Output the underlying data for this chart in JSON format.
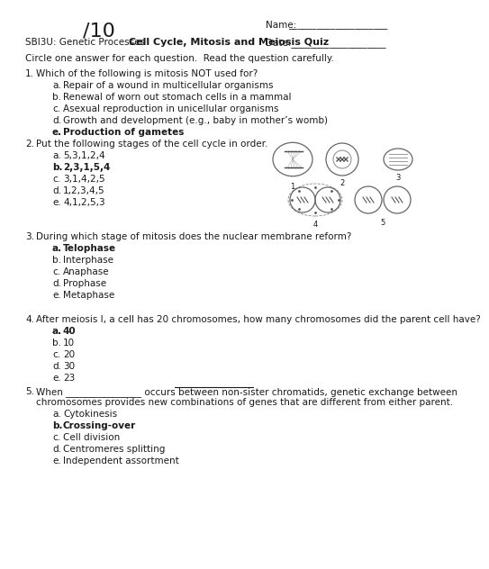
{
  "title_score": "/10",
  "name_label": "Name: ___________________",
  "date_label": "Date:____________________",
  "course_label": "SBI3U: Genetic Processes",
  "quiz_title": "Cell Cycle, Mitosis and Meiosis Quiz",
  "instruction": "Circle one answer for each question.  Read the question carefully.",
  "q1_text": "Which of the following is mitosis NOT used for?",
  "q1_options": [
    {
      "letter": "a.",
      "text": "Repair of a wound in multicellular organisms",
      "bold": false
    },
    {
      "letter": "b.",
      "text": "Renewal of worn out stomach cells in a mammal",
      "bold": false
    },
    {
      "letter": "c.",
      "text": "Asexual reproduction in unicellular organisms",
      "bold": false
    },
    {
      "letter": "d.",
      "text": "Growth and development (e.g., baby in mother’s womb)",
      "bold": false
    },
    {
      "letter": "e.",
      "text": "Production of gametes",
      "bold": true
    }
  ],
  "q2_text": "Put the following stages of the cell cycle in order.",
  "q2_options": [
    {
      "letter": "a.",
      "text": "5,3,1,2,4",
      "bold": false
    },
    {
      "letter": "b.",
      "text": "2,3,1,5,4",
      "bold": true
    },
    {
      "letter": "c.",
      "text": "3,1,4,2,5",
      "bold": false
    },
    {
      "letter": "d.",
      "text": "1,2,3,4,5",
      "bold": false
    },
    {
      "letter": "e.",
      "text": "4,1,2,5,3",
      "bold": false
    }
  ],
  "q3_text": "During which stage of mitosis does the nuclear membrane reform?",
  "q3_options": [
    {
      "letter": "a.",
      "text": "Telophase",
      "bold": true
    },
    {
      "letter": "b.",
      "text": "Interphase",
      "bold": false
    },
    {
      "letter": "c.",
      "text": "Anaphase",
      "bold": false
    },
    {
      "letter": "d.",
      "text": "Prophase",
      "bold": false
    },
    {
      "letter": "e.",
      "text": "Metaphase",
      "bold": false
    }
  ],
  "q4_text": "After meiosis I, a cell has 20 chromosomes, how many chromosomes did the parent cell have?",
  "q4_options": [
    {
      "letter": "a.",
      "text": "40",
      "bold": true
    },
    {
      "letter": "b.",
      "text": "10",
      "bold": false
    },
    {
      "letter": "c.",
      "text": "20",
      "bold": false
    },
    {
      "letter": "d.",
      "text": "30",
      "bold": false
    },
    {
      "letter": "e.",
      "text": "23",
      "bold": false
    }
  ],
  "q5_pre": "When ",
  "q5_blank": "________________",
  "q5_mid": " occurs between ",
  "q5_underlined": "non-sister chromatids",
  "q5_post": ", genetic exchange between",
  "q5_line2": "chromosomes provides new combinations of genes that are different from either parent.",
  "q5_options": [
    {
      "letter": "a.",
      "text": "Cytokinesis",
      "bold": false
    },
    {
      "letter": "b.",
      "text": "Crossing-over",
      "bold": true
    },
    {
      "letter": "c.",
      "text": "Cell division",
      "bold": false
    },
    {
      "letter": "d.",
      "text": "Centromeres splitting",
      "bold": false
    },
    {
      "letter": "e.",
      "text": "Independent assortment",
      "bold": false
    }
  ],
  "bg_color": "#ffffff",
  "text_color": "#1a1a1a",
  "fs": 7.5,
  "fs_title": 16
}
